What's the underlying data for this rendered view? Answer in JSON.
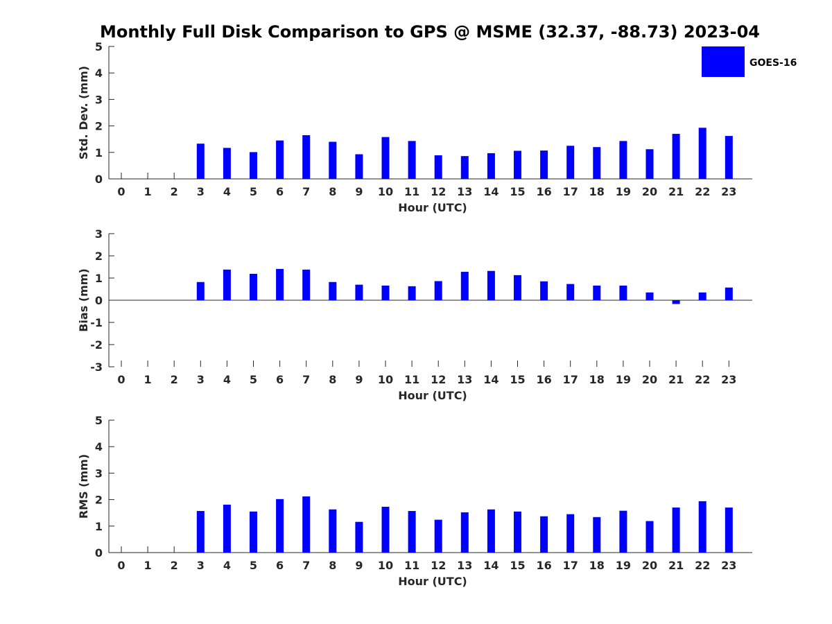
{
  "chart_data": {
    "title": "Monthly Full Disk Comparison to GPS @ MSME (32.37, -88.73) 2023-04",
    "legend": {
      "label": "GOES-16",
      "color": "#0000ff",
      "placement": "top-right"
    },
    "bar_color": "#0000ff",
    "panels": [
      {
        "type": "bar",
        "ylabel": "Std. Dev. (mm)",
        "xlabel": "Hour (UTC)",
        "ylim": [
          0,
          5
        ],
        "yticks": [
          0,
          1,
          2,
          3,
          4,
          5
        ],
        "categories": [
          "0",
          "1",
          "2",
          "3",
          "4",
          "5",
          "6",
          "7",
          "8",
          "9",
          "10",
          "11",
          "12",
          "13",
          "14",
          "15",
          "16",
          "17",
          "18",
          "19",
          "20",
          "21",
          "22",
          "23"
        ],
        "series": [
          {
            "name": "GOES-16",
            "values": [
              null,
              null,
              null,
              1.33,
              1.17,
              1.01,
              1.45,
              1.65,
              1.4,
              0.93,
              1.58,
              1.43,
              0.89,
              0.86,
              0.97,
              1.06,
              1.07,
              1.25,
              1.2,
              1.43,
              1.12,
              1.7,
              1.93,
              1.62
            ]
          }
        ]
      },
      {
        "type": "bar",
        "ylabel": "Bias (mm)",
        "xlabel": "Hour (UTC)",
        "ylim": [
          -3,
          3
        ],
        "yticks": [
          -3,
          -2,
          -1,
          0,
          1,
          2,
          3
        ],
        "categories": [
          "0",
          "1",
          "2",
          "3",
          "4",
          "5",
          "6",
          "7",
          "8",
          "9",
          "10",
          "11",
          "12",
          "13",
          "14",
          "15",
          "16",
          "17",
          "18",
          "19",
          "20",
          "21",
          "22",
          "23"
        ],
        "series": [
          {
            "name": "GOES-16",
            "values": [
              null,
              null,
              null,
              0.82,
              1.38,
              1.19,
              1.41,
              1.38,
              0.82,
              0.7,
              0.66,
              0.63,
              0.86,
              1.28,
              1.32,
              1.13,
              0.85,
              0.73,
              0.66,
              0.66,
              0.35,
              -0.17,
              0.35,
              0.57
            ]
          }
        ]
      },
      {
        "type": "bar",
        "ylabel": "RMS (mm)",
        "xlabel": "Hour (UTC)",
        "ylim": [
          0,
          5
        ],
        "yticks": [
          0,
          1,
          2,
          3,
          4,
          5
        ],
        "categories": [
          "0",
          "1",
          "2",
          "3",
          "4",
          "5",
          "6",
          "7",
          "8",
          "9",
          "10",
          "11",
          "12",
          "13",
          "14",
          "15",
          "16",
          "17",
          "18",
          "19",
          "20",
          "21",
          "22",
          "23"
        ],
        "series": [
          {
            "name": "GOES-16",
            "values": [
              null,
              null,
              null,
              1.57,
              1.81,
              1.55,
              2.02,
              2.12,
              1.63,
              1.16,
              1.73,
              1.57,
              1.24,
              1.52,
              1.63,
              1.55,
              1.37,
              1.45,
              1.34,
              1.58,
              1.19,
              1.7,
              1.94,
              1.7
            ]
          }
        ]
      }
    ]
  }
}
